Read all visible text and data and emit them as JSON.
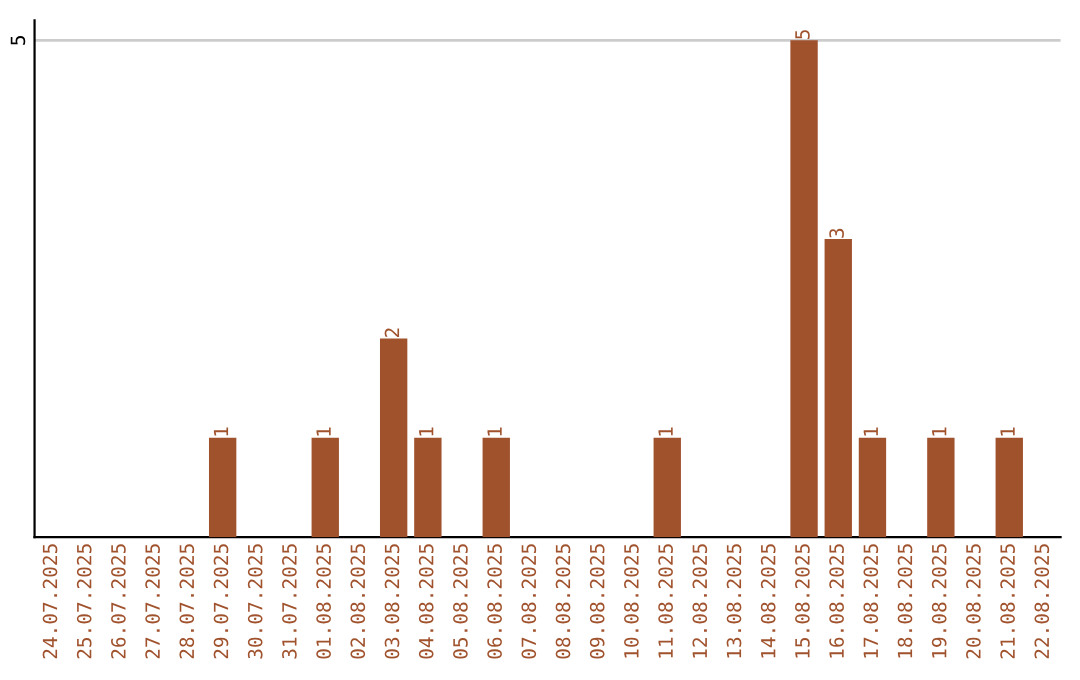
{
  "chart_data": {
    "type": "bar",
    "categories": [
      "24.07.2025",
      "25.07.2025",
      "26.07.2025",
      "27.07.2025",
      "28.07.2025",
      "29.07.2025",
      "30.07.2025",
      "31.07.2025",
      "01.08.2025",
      "02.08.2025",
      "03.08.2025",
      "04.08.2025",
      "05.08.2025",
      "06.08.2025",
      "07.08.2025",
      "08.08.2025",
      "09.08.2025",
      "10.08.2025",
      "11.08.2025",
      "12.08.2025",
      "13.08.2025",
      "14.08.2025",
      "15.08.2025",
      "16.08.2025",
      "17.08.2025",
      "18.08.2025",
      "19.08.2025",
      "20.08.2025",
      "21.08.2025",
      "22.08.2025"
    ],
    "values": [
      0,
      0,
      0,
      0,
      0,
      1,
      0,
      0,
      1,
      0,
      2,
      1,
      0,
      1,
      0,
      0,
      0,
      0,
      1,
      0,
      0,
      0,
      5,
      3,
      1,
      0,
      1,
      0,
      1,
      0
    ],
    "value_labels": [
      null,
      null,
      null,
      null,
      null,
      "1",
      null,
      null,
      "1",
      null,
      "2",
      "1",
      null,
      "1",
      null,
      null,
      null,
      null,
      "1",
      null,
      null,
      null,
      "5",
      "3",
      "1",
      null,
      "1",
      null,
      "1",
      null
    ],
    "color": "#a0522d",
    "ylim": [
      0,
      5.2
    ],
    "yticks": [
      5
    ],
    "grid": "y",
    "legend": false
  }
}
